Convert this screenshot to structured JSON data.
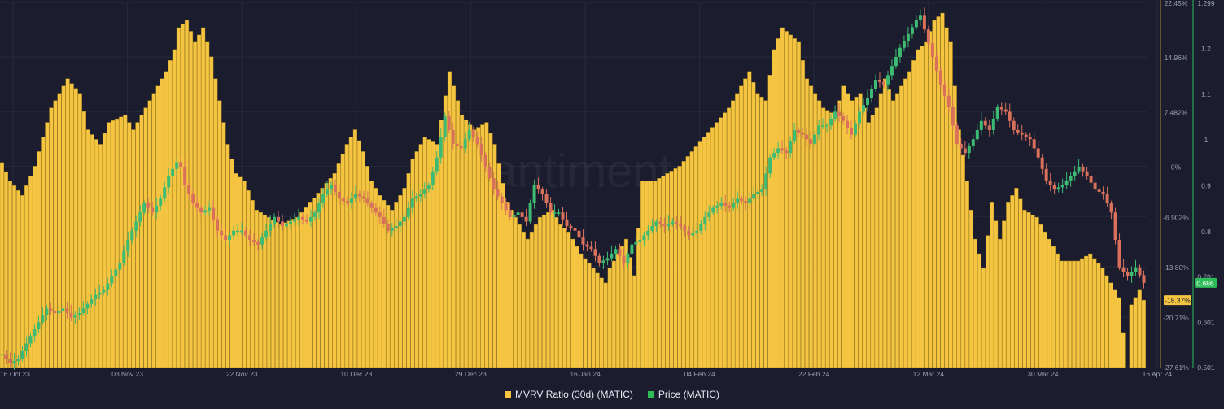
{
  "watermark": "santiment",
  "colors": {
    "background": "#1b1d2e",
    "mvrv_bar": "#f5c542",
    "mvrv_bar_edge": "#9a7a1c",
    "candle_up": "#3dbb72",
    "candle_down": "#d9705c",
    "price_axis": "#2ebd59",
    "grid": "#262a3f",
    "axis_text": "#9aa0b4",
    "mvrv_tag_bg": "#f5c542",
    "price_tag_bg": "#2ebd59"
  },
  "legend": {
    "mvrv_label": "MVRV Ratio (30d) (MATIC)",
    "price_label": "Price (MATIC)"
  },
  "chart_data": {
    "type": "bar",
    "x_tick_labels": [
      "16 Oct 23",
      "03 Nov 23",
      "22 Nov 23",
      "10 Dec 23",
      "29 Dec 23",
      "16 Jan 24",
      "04 Feb 24",
      "22 Feb 24",
      "12 Mar 24",
      "30 Mar 24",
      "16 Apr 24"
    ],
    "mvrv_axis": {
      "tick_labels": [
        "22.45%",
        "14.96%",
        "7.482%",
        "0%",
        "-6.902%",
        "-13.80%",
        "-20.71%",
        "-27.61%"
      ],
      "tick_values": [
        22.45,
        14.96,
        7.482,
        0,
        -6.902,
        -13.8,
        -20.71,
        -27.61
      ],
      "ylim": [
        -27.61,
        22.45
      ]
    },
    "price_axis": {
      "tick_labels": [
        "1.299",
        "1.2",
        "1.1",
        "1",
        "0.9",
        "0.8",
        "0.701",
        "0.601",
        "0.501"
      ],
      "tick_values": [
        1.299,
        1.2,
        1.1,
        1,
        0.9,
        0.8,
        0.701,
        0.601,
        0.501
      ],
      "ylim": [
        0.501,
        1.299
      ]
    },
    "current_mvrv_label": "-18.37%",
    "current_mvrv": -18.37,
    "current_price_label": "0.686",
    "current_price": 0.686,
    "mvrv_anchors": [
      [
        0,
        0.5
      ],
      [
        2,
        -2
      ],
      [
        5,
        -4
      ],
      [
        8,
        0
      ],
      [
        12,
        8
      ],
      [
        16,
        12
      ],
      [
        19,
        10
      ],
      [
        21,
        5
      ],
      [
        24,
        3
      ],
      [
        26,
        6
      ],
      [
        30,
        7
      ],
      [
        32,
        5
      ],
      [
        36,
        9
      ],
      [
        40,
        13
      ],
      [
        42,
        16
      ],
      [
        43,
        19
      ],
      [
        45,
        20
      ],
      [
        47,
        17
      ],
      [
        49,
        19
      ],
      [
        51,
        15
      ],
      [
        53,
        9
      ],
      [
        55,
        3
      ],
      [
        57,
        -1
      ],
      [
        59,
        -2
      ],
      [
        62,
        -6
      ],
      [
        65,
        -7
      ],
      [
        68,
        -8
      ],
      [
        72,
        -7
      ],
      [
        75,
        -5
      ],
      [
        78,
        -3
      ],
      [
        81,
        -1
      ],
      [
        84,
        3
      ],
      [
        86,
        5
      ],
      [
        88,
        2
      ],
      [
        90,
        -2
      ],
      [
        92,
        -4
      ],
      [
        95,
        -6
      ],
      [
        98,
        -3
      ],
      [
        100,
        1
      ],
      [
        103,
        4
      ],
      [
        106,
        3
      ],
      [
        109,
        13
      ],
      [
        110,
        11
      ],
      [
        112,
        7
      ],
      [
        115,
        5
      ],
      [
        118,
        6
      ],
      [
        120,
        3
      ],
      [
        123,
        -5
      ],
      [
        126,
        -8
      ],
      [
        128,
        -10
      ],
      [
        131,
        -7
      ],
      [
        134,
        -6
      ],
      [
        136,
        -8
      ],
      [
        138,
        -9
      ],
      [
        141,
        -12
      ],
      [
        144,
        -14
      ],
      [
        147,
        -16
      ],
      [
        148,
        -14
      ],
      [
        150,
        -12
      ],
      [
        152,
        -10
      ],
      [
        154,
        -15
      ],
      [
        156,
        -2
      ],
      [
        159,
        -2
      ],
      [
        162,
        -1
      ],
      [
        165,
        0
      ],
      [
        168,
        2
      ],
      [
        171,
        4
      ],
      [
        174,
        6
      ],
      [
        177,
        8
      ],
      [
        180,
        11
      ],
      [
        182,
        13
      ],
      [
        184,
        10
      ],
      [
        186,
        9
      ],
      [
        188,
        16
      ],
      [
        190,
        19
      ],
      [
        192,
        18
      ],
      [
        194,
        17
      ],
      [
        196,
        12
      ],
      [
        198,
        10
      ],
      [
        200,
        8
      ],
      [
        203,
        7
      ],
      [
        205,
        11
      ],
      [
        207,
        9
      ],
      [
        209,
        10
      ],
      [
        211,
        6
      ],
      [
        213,
        8
      ],
      [
        215,
        12
      ],
      [
        217,
        9
      ],
      [
        219,
        11
      ],
      [
        221,
        13
      ],
      [
        223,
        16
      ],
      [
        225,
        17
      ],
      [
        227,
        20
      ],
      [
        229,
        21
      ],
      [
        231,
        17
      ],
      [
        233,
        5
      ],
      [
        235,
        -2
      ],
      [
        237,
        -10
      ],
      [
        239,
        -14
      ],
      [
        241,
        -5
      ],
      [
        243,
        -10
      ],
      [
        245,
        -5
      ],
      [
        247,
        -3
      ],
      [
        249,
        -6
      ],
      [
        252,
        -7
      ],
      [
        255,
        -10
      ],
      [
        258,
        -13
      ],
      [
        262,
        -13
      ],
      [
        265,
        -12
      ],
      [
        268,
        -14
      ],
      [
        270,
        -16
      ],
      [
        272,
        -18
      ],
      [
        274,
        -27.61
      ],
      [
        275,
        -19
      ],
      [
        277,
        -17
      ],
      [
        278,
        -18.37
      ]
    ],
    "price_anchors": [
      [
        0,
        0.53
      ],
      [
        2,
        0.51
      ],
      [
        4,
        0.52
      ],
      [
        7,
        0.57
      ],
      [
        9,
        0.6
      ],
      [
        11,
        0.63
      ],
      [
        13,
        0.62
      ],
      [
        15,
        0.63
      ],
      [
        17,
        0.61
      ],
      [
        19,
        0.62
      ],
      [
        21,
        0.64
      ],
      [
        23,
        0.66
      ],
      [
        25,
        0.67
      ],
      [
        27,
        0.7
      ],
      [
        29,
        0.73
      ],
      [
        31,
        0.78
      ],
      [
        33,
        0.82
      ],
      [
        35,
        0.86
      ],
      [
        37,
        0.84
      ],
      [
        39,
        0.87
      ],
      [
        41,
        0.92
      ],
      [
        43,
        0.95
      ],
      [
        44,
        0.94
      ],
      [
        45,
        0.9
      ],
      [
        47,
        0.86
      ],
      [
        49,
        0.84
      ],
      [
        51,
        0.85
      ],
      [
        53,
        0.8
      ],
      [
        55,
        0.78
      ],
      [
        57,
        0.8
      ],
      [
        59,
        0.8
      ],
      [
        61,
        0.78
      ],
      [
        63,
        0.77
      ],
      [
        65,
        0.8
      ],
      [
        67,
        0.83
      ],
      [
        69,
        0.81
      ],
      [
        71,
        0.82
      ],
      [
        73,
        0.83
      ],
      [
        75,
        0.82
      ],
      [
        77,
        0.84
      ],
      [
        79,
        0.88
      ],
      [
        81,
        0.9
      ],
      [
        83,
        0.87
      ],
      [
        85,
        0.86
      ],
      [
        87,
        0.88
      ],
      [
        89,
        0.87
      ],
      [
        91,
        0.85
      ],
      [
        93,
        0.83
      ],
      [
        95,
        0.8
      ],
      [
        97,
        0.81
      ],
      [
        99,
        0.83
      ],
      [
        101,
        0.87
      ],
      [
        103,
        0.88
      ],
      [
        105,
        0.9
      ],
      [
        107,
        0.96
      ],
      [
        109,
        1.05
      ],
      [
        110,
        1.02
      ],
      [
        111,
        0.99
      ],
      [
        113,
        0.98
      ],
      [
        115,
        1.02
      ],
      [
        117,
        0.99
      ],
      [
        119,
        0.94
      ],
      [
        121,
        0.89
      ],
      [
        123,
        0.86
      ],
      [
        125,
        0.83
      ],
      [
        127,
        0.84
      ],
      [
        129,
        0.82
      ],
      [
        131,
        0.9
      ],
      [
        133,
        0.88
      ],
      [
        135,
        0.84
      ],
      [
        137,
        0.84
      ],
      [
        139,
        0.81
      ],
      [
        141,
        0.8
      ],
      [
        143,
        0.77
      ],
      [
        145,
        0.76
      ],
      [
        147,
        0.73
      ],
      [
        149,
        0.74
      ],
      [
        151,
        0.76
      ],
      [
        153,
        0.73
      ],
      [
        155,
        0.77
      ],
      [
        157,
        0.78
      ],
      [
        159,
        0.8
      ],
      [
        161,
        0.82
      ],
      [
        163,
        0.81
      ],
      [
        165,
        0.82
      ],
      [
        167,
        0.81
      ],
      [
        169,
        0.79
      ],
      [
        171,
        0.8
      ],
      [
        173,
        0.83
      ],
      [
        175,
        0.85
      ],
      [
        177,
        0.86
      ],
      [
        179,
        0.85
      ],
      [
        181,
        0.87
      ],
      [
        183,
        0.86
      ],
      [
        185,
        0.88
      ],
      [
        187,
        0.89
      ],
      [
        189,
        0.96
      ],
      [
        191,
        0.98
      ],
      [
        193,
        0.97
      ],
      [
        195,
        1.02
      ],
      [
        197,
        1.01
      ],
      [
        199,
        0.99
      ],
      [
        201,
        1.03
      ],
      [
        203,
        1.03
      ],
      [
        205,
        1.06
      ],
      [
        207,
        1.04
      ],
      [
        209,
        1.01
      ],
      [
        211,
        1.06
      ],
      [
        213,
        1.09
      ],
      [
        215,
        1.13
      ],
      [
        217,
        1.12
      ],
      [
        219,
        1.16
      ],
      [
        221,
        1.2
      ],
      [
        223,
        1.23
      ],
      [
        225,
        1.26
      ],
      [
        226,
        1.27
      ],
      [
        227,
        1.24
      ],
      [
        229,
        1.18
      ],
      [
        231,
        1.12
      ],
      [
        233,
        1.07
      ],
      [
        235,
        0.99
      ],
      [
        237,
        0.97
      ],
      [
        239,
        1.0
      ],
      [
        241,
        1.04
      ],
      [
        243,
        1.02
      ],
      [
        245,
        1.07
      ],
      [
        247,
        1.06
      ],
      [
        249,
        1.02
      ],
      [
        251,
        1.01
      ],
      [
        253,
        1.0
      ],
      [
        255,
        0.96
      ],
      [
        257,
        0.91
      ],
      [
        259,
        0.89
      ],
      [
        261,
        0.9
      ],
      [
        263,
        0.92
      ],
      [
        265,
        0.94
      ],
      [
        267,
        0.92
      ],
      [
        269,
        0.89
      ],
      [
        271,
        0.88
      ],
      [
        273,
        0.84
      ],
      [
        275,
        0.72
      ],
      [
        277,
        0.7
      ],
      [
        279,
        0.72
      ],
      [
        281,
        0.686
      ]
    ]
  }
}
